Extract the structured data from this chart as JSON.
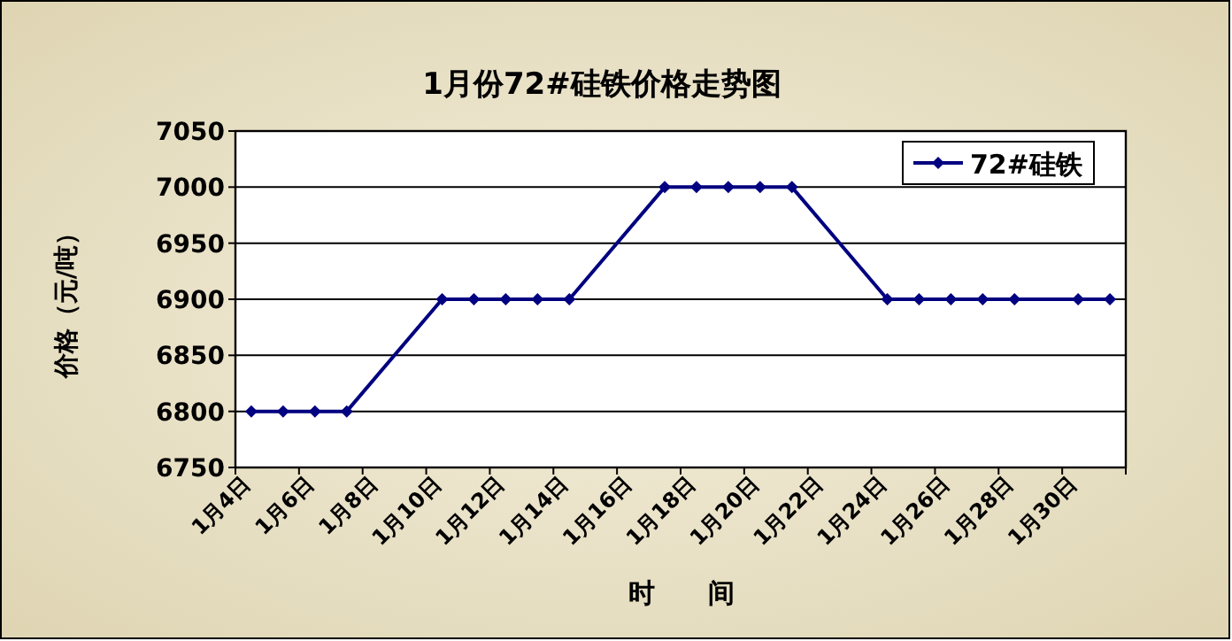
{
  "chart_data": {
    "type": "line",
    "title": "1月份72#硅铁价格走势图",
    "xlabel": "时　　间",
    "ylabel": "价格（元/吨）",
    "categories": [
      "1月4日",
      null,
      "1月6日",
      null,
      "1月8日",
      null,
      "1月10日",
      null,
      "1月12日",
      null,
      "1月14日",
      null,
      "1月16日",
      null,
      "1月18日",
      null,
      "1月20日",
      null,
      "1月22日",
      null,
      "1月24日",
      null,
      "1月26日",
      null,
      "1月28日",
      null,
      "1月30日",
      null
    ],
    "series": [
      {
        "name": "72#硅铁",
        "color": "#000080",
        "values": [
          6800,
          6800,
          6800,
          6800,
          null,
          null,
          6900,
          6900,
          6900,
          6900,
          6900,
          null,
          null,
          7000,
          7000,
          7000,
          7000,
          7000,
          null,
          null,
          6900,
          6900,
          6900,
          6900,
          6900,
          null,
          6900,
          6900
        ]
      }
    ],
    "ylim": [
      6750,
      7050
    ],
    "yticks": [
      6750,
      6800,
      6850,
      6900,
      6950,
      7000,
      7050
    ],
    "grid": "y",
    "legend": "top right",
    "marker": "diamond",
    "line_style": "solid"
  }
}
